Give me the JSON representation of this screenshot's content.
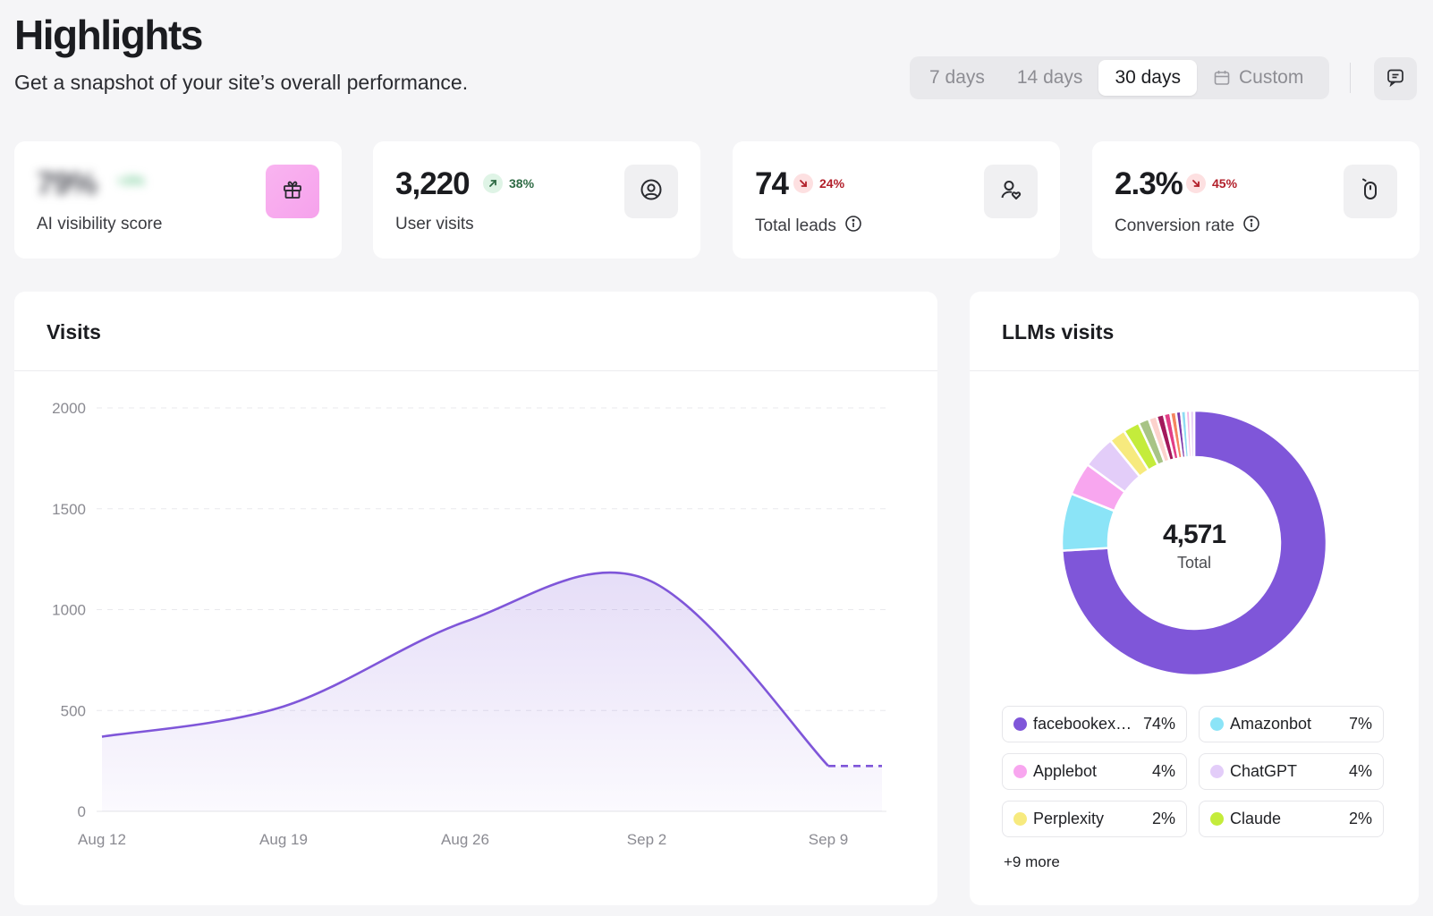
{
  "header": {
    "title": "Highlights",
    "subtitle": "Get a snapshot of your site’s overall performance."
  },
  "range": {
    "options": [
      "7 days",
      "14 days",
      "30 days",
      "Custom"
    ],
    "selected": "30 days"
  },
  "stats": [
    {
      "value": "79%",
      "delta": "+3%",
      "label": "AI visibility score",
      "icon": "gift-icon",
      "blurred": true
    },
    {
      "value": "3,220",
      "delta": "38%",
      "direction": "up",
      "label": "User visits",
      "icon": "user-circle-icon"
    },
    {
      "value": "74",
      "delta": "24%",
      "direction": "down",
      "label": "Total leads",
      "icon": "user-heart-icon",
      "info": true
    },
    {
      "value": "2.3%",
      "delta": "45%",
      "direction": "down",
      "label": "Conversion rate",
      "icon": "mouse-icon",
      "info": true
    }
  ],
  "visits_panel": {
    "title": "Visits"
  },
  "llm_panel": {
    "title": "LLMs visits",
    "total_value": "4,571",
    "total_label": "Total",
    "legend": [
      {
        "name": "facebookext…",
        "pct": "74%",
        "color": "#7f56d9"
      },
      {
        "name": "Amazonbot",
        "pct": "7%",
        "color": "#8be4f7"
      },
      {
        "name": "Applebot",
        "pct": "4%",
        "color": "#f8a6ef"
      },
      {
        "name": "ChatGPT",
        "pct": "4%",
        "color": "#e3cdf9"
      },
      {
        "name": "Perplexity",
        "pct": "2%",
        "color": "#f7ea7e"
      },
      {
        "name": "Claude",
        "pct": "2%",
        "color": "#c4ec3b"
      }
    ],
    "more": "+9 more"
  },
  "chart_data": [
    {
      "type": "area",
      "title": "Visits",
      "x": [
        "Aug 12",
        "Aug 19",
        "Aug 26",
        "Sep 2",
        "Sep 9"
      ],
      "y_ticks": [
        0,
        500,
        1000,
        1500,
        2000
      ],
      "ylim": [
        0,
        2000
      ],
      "grid": true,
      "color": "#7f56d9",
      "series": [
        {
          "points": [
            {
              "x": "Aug 12",
              "y": 370
            },
            {
              "x": "Aug 19",
              "y": 520
            },
            {
              "x": "Aug 26",
              "y": 940
            },
            {
              "x": "Sep 2",
              "y": 1150
            },
            {
              "x": "Sep 9",
              "y": 225,
              "projected_to": 225
            }
          ]
        }
      ]
    },
    {
      "type": "pie",
      "title": "LLMs visits",
      "total": 4571,
      "slices": [
        {
          "name": "facebookext…",
          "value": 74,
          "color": "#7f56d9"
        },
        {
          "name": "Amazonbot",
          "value": 7,
          "color": "#8be4f7"
        },
        {
          "name": "Applebot",
          "value": 4,
          "color": "#f8a6ef"
        },
        {
          "name": "ChatGPT",
          "value": 4,
          "color": "#e3cdf9"
        },
        {
          "name": "Perplexity",
          "value": 2,
          "color": "#f7ea7e"
        },
        {
          "name": "Claude",
          "value": 2,
          "color": "#c4ec3b"
        },
        {
          "value": 1.3,
          "color": "#a8c486"
        },
        {
          "value": 1,
          "color": "#fcd2cc"
        },
        {
          "value": 0.9,
          "color": "#a3195b"
        },
        {
          "value": 0.8,
          "color": "#e23e86"
        },
        {
          "value": 0.7,
          "color": "#f5855f"
        },
        {
          "value": 0.6,
          "color": "#7a33a8"
        },
        {
          "value": 0.6,
          "color": "#8fdcf3"
        },
        {
          "value": 0.5,
          "color": "#f5b7e3"
        },
        {
          "value": 0.5,
          "color": "#e6ccf5"
        }
      ]
    }
  ]
}
